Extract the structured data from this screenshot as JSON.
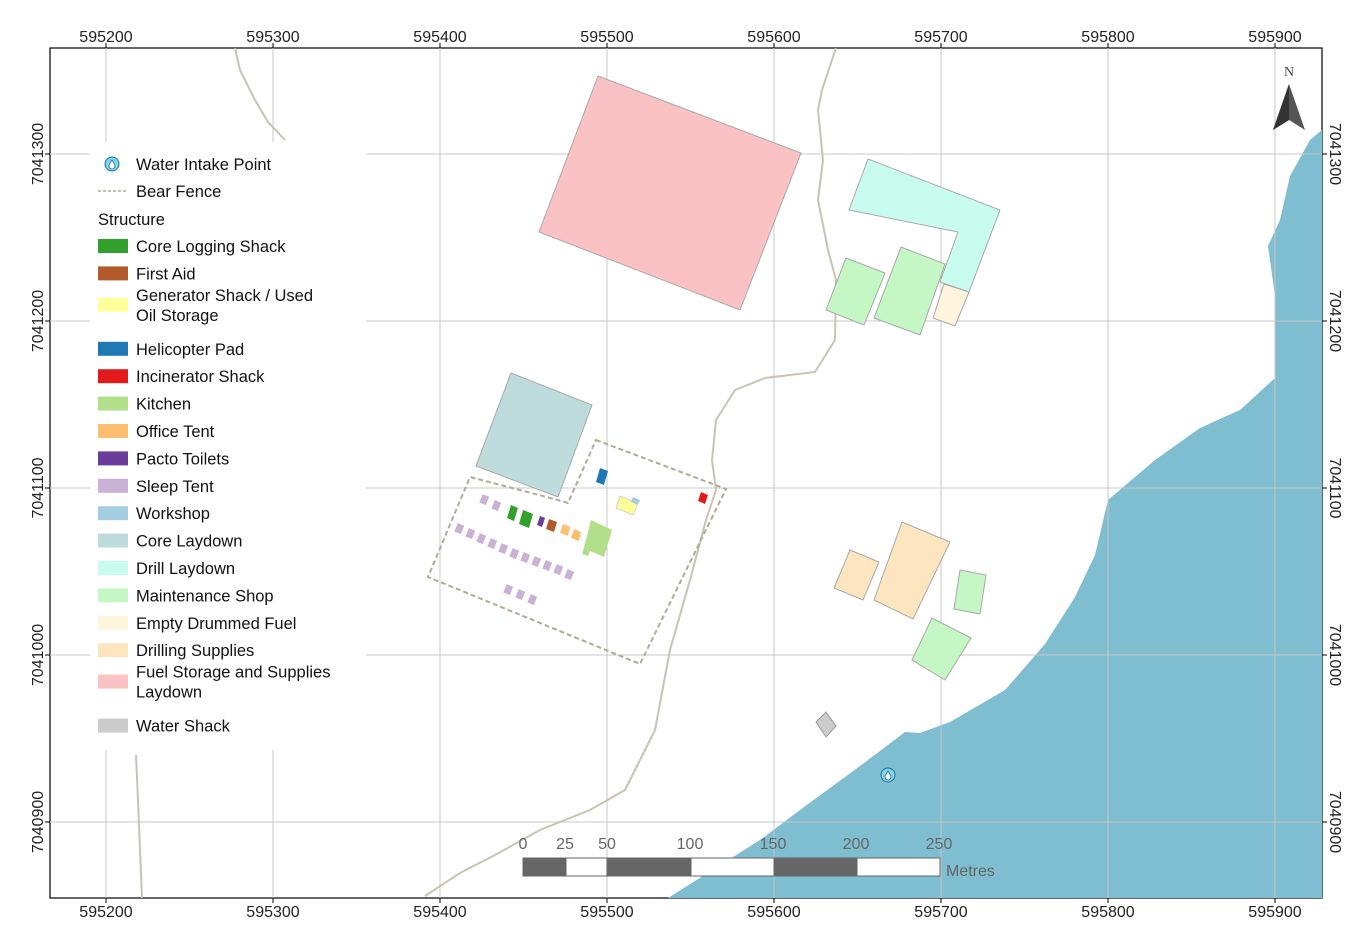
{
  "map": {
    "x_ticks": [
      "595200",
      "595300",
      "595400",
      "595500",
      "595600",
      "595700",
      "595800",
      "595900"
    ],
    "y_ticks": [
      "7041300",
      "7041200",
      "7041100",
      "7041000",
      "7040900"
    ],
    "north_label": "N",
    "colors": {
      "water": "#7fbdd0",
      "grid": "#c8c8c8",
      "road": "#c9c3b4",
      "fence": "#b4aa96"
    }
  },
  "legend": {
    "water_intake": "Water Intake Point",
    "bear_fence": "Bear Fence",
    "structure_title": "Structure",
    "items": [
      {
        "label": "Core Logging Shack",
        "color": "#33a02c"
      },
      {
        "label": "First Aid",
        "color": "#b15928"
      },
      {
        "label": "Generator Shack / Used",
        "label2": "Oil Storage",
        "color": "#ffff99"
      },
      {
        "label": "Helicopter Pad",
        "color": "#1f78b4"
      },
      {
        "label": "Incinerator Shack",
        "color": "#e31a1c"
      },
      {
        "label": "Kitchen",
        "color": "#b2df8a"
      },
      {
        "label": "Office Tent",
        "color": "#fdbf6f"
      },
      {
        "label": "Pacto Toilets",
        "color": "#6a3d9a"
      },
      {
        "label": "Sleep Tent",
        "color": "#cab2d6"
      },
      {
        "label": "Workshop",
        "color": "#a6cee3"
      },
      {
        "label": "Core Laydown",
        "color": "#bfdcdc"
      },
      {
        "label": "Drill Laydown",
        "color": "#c8fcee"
      },
      {
        "label": "Maintenance Shop",
        "color": "#c5f7c5"
      },
      {
        "label": "Empty Drummed Fuel",
        "color": "#fff5dc"
      },
      {
        "label": "Drilling Supplies",
        "color": "#fde5bf"
      },
      {
        "label": "Fuel Storage and Supplies",
        "label2": "Laydown",
        "color": "#fbc2c4"
      },
      {
        "label": "Water Shack",
        "color": "#cccccc"
      }
    ]
  },
  "scale": {
    "labels": [
      "0",
      "25",
      "50",
      "100",
      "150",
      "200",
      "250"
    ],
    "unit": "Metres"
  }
}
